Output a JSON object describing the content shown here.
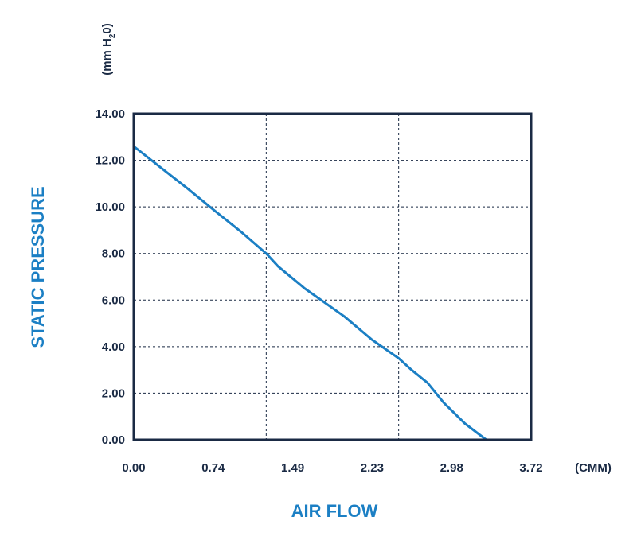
{
  "chart_data": {
    "type": "line",
    "xlabel": "AIR FLOW",
    "ylabel": "STATIC PRESSURE",
    "x_unit": "(CMM)",
    "y_unit": {
      "prefix": "(mm H",
      "sub": "2",
      "suffix": "0)"
    },
    "x_ticks": [
      "0.00",
      "0.74",
      "1.49",
      "2.23",
      "2.98",
      "3.72"
    ],
    "y_ticks": [
      "0.00",
      "2.00",
      "4.00",
      "6.00",
      "8.00",
      "10.00",
      "12.00",
      "14.00"
    ],
    "xlim": [
      0,
      3.72
    ],
    "ylim": [
      0,
      14
    ],
    "x_grid": [
      1.24,
      2.48
    ],
    "y_grid": [
      2,
      4,
      6,
      8,
      10,
      12
    ],
    "grid": true,
    "series": [
      {
        "x": [
          0,
          0.25,
          0.5,
          0.74,
          1.0,
          1.24,
          1.35,
          1.6,
          1.97,
          2.23,
          2.48,
          2.6,
          2.75,
          2.9,
          3.1,
          3.3
        ],
        "y": [
          12.6,
          11.7,
          10.8,
          9.9,
          8.95,
          8.0,
          7.45,
          6.5,
          5.3,
          4.3,
          3.5,
          3.0,
          2.45,
          1.6,
          0.7,
          0.0
        ]
      }
    ]
  },
  "colors": {
    "frame": "#1a2a44",
    "curve": "#1b7fc4",
    "title": "#1b7fc4",
    "grid": "#1a2a44"
  }
}
